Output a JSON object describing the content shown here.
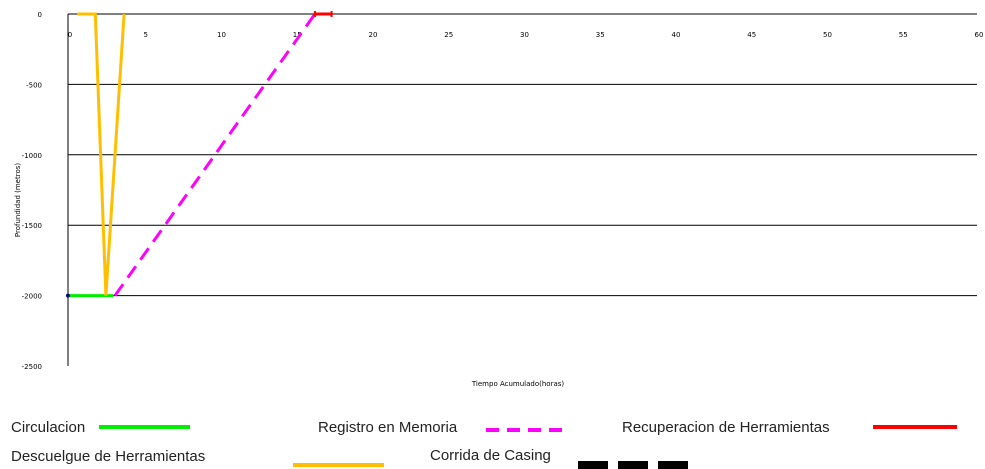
{
  "chart_data": {
    "type": "line",
    "xlabel": "Tiempo Acumulado(horas)",
    "ylabel": "Profundidad (metros)",
    "xlim": [
      0,
      60
    ],
    "ylim": [
      -2500,
      0
    ],
    "x_ticks": [
      0,
      5,
      10,
      15,
      20,
      25,
      30,
      35,
      40,
      45,
      50,
      55,
      60
    ],
    "y_ticks": [
      0,
      -500,
      -1000,
      -1500,
      -2000,
      -2500
    ],
    "x_tick_labels": [
      "0",
      "5",
      "10",
      "15",
      "20",
      "25",
      "30",
      "35",
      "40",
      "45",
      "50",
      "55",
      "60"
    ],
    "y_tick_labels": [
      "0",
      "-500",
      "-1000",
      "-1500",
      "-2000",
      "-2500"
    ],
    "grid": "horizontal",
    "legend_position": "bottom",
    "series": [
      {
        "name": "Circulacion",
        "color": "#00ee00",
        "style": "solid",
        "points": [
          [
            0,
            -2000
          ],
          [
            3,
            -2000
          ]
        ]
      },
      {
        "name": "Registro en Memoria",
        "color": "#ff00ff",
        "style": "dashed",
        "points": [
          [
            3.1,
            -2000
          ],
          [
            16.3,
            0
          ]
        ]
      },
      {
        "name": "Recuperacion de Herramientas",
        "color": "#ff0000",
        "style": "solid",
        "points": [
          [
            16.3,
            0
          ],
          [
            17.4,
            0
          ]
        ]
      },
      {
        "name": "Descuelgue de Herramientas",
        "color": "#ffbf00",
        "style": "solid",
        "points": [
          [
            0.6,
            0
          ],
          [
            1.8,
            0
          ],
          [
            2.5,
            -2000
          ],
          [
            3.7,
            0
          ]
        ]
      },
      {
        "name": "Corrida de Casing",
        "color": "#000000",
        "style": "solid",
        "points": []
      }
    ]
  }
}
